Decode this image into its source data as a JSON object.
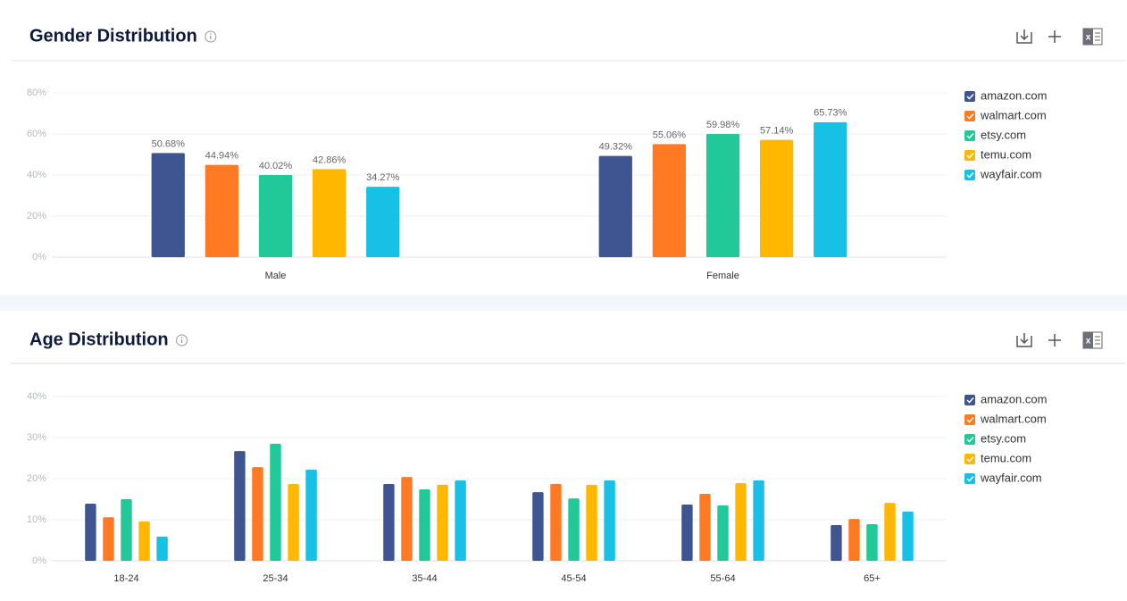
{
  "chart_data": [
    {
      "type": "bar",
      "title": "Gender Distribution",
      "categories": [
        "Male",
        "Female"
      ],
      "series": [
        {
          "name": "amazon.com",
          "color": "#3f5592",
          "values": [
            50.68,
            49.32
          ],
          "value_labels": [
            "50.68%",
            "49.32%"
          ]
        },
        {
          "name": "walmart.com",
          "color": "#ff7a22",
          "values": [
            44.94,
            55.06
          ],
          "value_labels": [
            "44.94%",
            "55.06%"
          ]
        },
        {
          "name": "etsy.com",
          "color": "#20c997",
          "values": [
            40.02,
            59.98
          ],
          "value_labels": [
            "40.02%",
            "59.98%"
          ]
        },
        {
          "name": "temu.com",
          "color": "#ffb700",
          "values": [
            42.86,
            57.14
          ],
          "value_labels": [
            "42.86%",
            "57.14%"
          ]
        },
        {
          "name": "wayfair.com",
          "color": "#17c1e6",
          "values": [
            34.27,
            65.73
          ],
          "value_labels": [
            "34.27%",
            "65.73%"
          ]
        }
      ],
      "ylim": [
        0,
        80
      ],
      "yticks": [
        {
          "value": 0,
          "label": "0%"
        },
        {
          "value": 20,
          "label": "20%"
        },
        {
          "value": 40,
          "label": "40%"
        },
        {
          "value": 60,
          "label": "60%"
        },
        {
          "value": 80,
          "label": "80%"
        }
      ],
      "grid": true,
      "legend": "right"
    },
    {
      "type": "bar",
      "title": "Age Distribution",
      "categories": [
        "18-24",
        "25-34",
        "35-44",
        "45-54",
        "55-64",
        "65+"
      ],
      "series": [
        {
          "name": "amazon.com",
          "color": "#3f5592",
          "values": [
            13.9,
            26.7,
            18.7,
            16.7,
            13.7,
            8.7
          ]
        },
        {
          "name": "walmart.com",
          "color": "#ff7a22",
          "values": [
            10.6,
            22.8,
            20.4,
            18.7,
            16.3,
            10.2
          ]
        },
        {
          "name": "etsy.com",
          "color": "#20c997",
          "values": [
            15.0,
            28.5,
            17.4,
            15.2,
            13.5,
            8.9
          ]
        },
        {
          "name": "temu.com",
          "color": "#ffb700",
          "values": [
            9.6,
            18.7,
            18.5,
            18.5,
            18.9,
            14.1
          ]
        },
        {
          "name": "wayfair.com",
          "color": "#17c1e6",
          "values": [
            5.9,
            22.2,
            19.6,
            19.6,
            19.6,
            12.0
          ]
        }
      ],
      "ylim": [
        0,
        40
      ],
      "yticks": [
        {
          "value": 0,
          "label": "0%"
        },
        {
          "value": 10,
          "label": "10%"
        },
        {
          "value": 20,
          "label": "20%"
        },
        {
          "value": 30,
          "label": "30%"
        },
        {
          "value": 40,
          "label": "40%"
        }
      ],
      "grid": true,
      "legend": "right"
    }
  ]
}
